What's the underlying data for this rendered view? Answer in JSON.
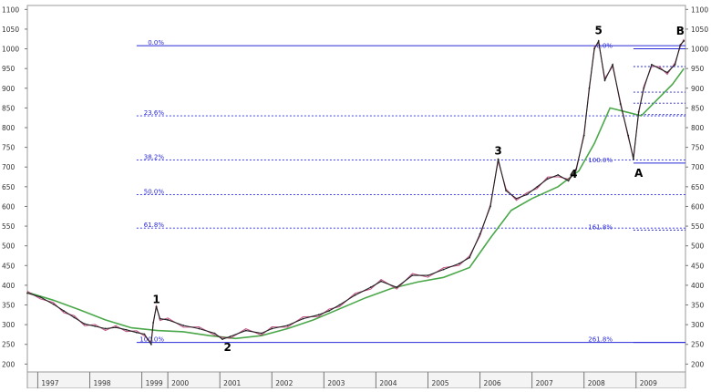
{
  "chart_data": {
    "type": "line",
    "title": "",
    "xlabel": "",
    "ylabel": "",
    "ylim": [
      180,
      1110
    ],
    "xlim": [
      1997.3,
      2009.95
    ],
    "y_ticks": [
      1100,
      1050,
      1000,
      950,
      900,
      850,
      800,
      750,
      700,
      650,
      600,
      550,
      500,
      450,
      400,
      350,
      300,
      250,
      200
    ],
    "y_tick_labels": [
      "1100",
      "1050",
      "1000",
      "950",
      "900",
      "850",
      "800",
      "750",
      "700",
      "650",
      "600",
      "550",
      "500",
      "450",
      "400",
      "350",
      "300",
      "250",
      "200"
    ],
    "x_ticks": [
      {
        "label": "1997",
        "x": 1997.5
      },
      {
        "label": "1998",
        "x": 1998.5
      },
      {
        "label": "1999",
        "x": 1999.5
      },
      {
        "label": "2000",
        "x": 2000.0
      },
      {
        "label": "2001",
        "x": 2001.0
      },
      {
        "label": "2002",
        "x": 2002.0
      },
      {
        "label": "2003",
        "x": 2003.0
      },
      {
        "label": "2004",
        "x": 2004.0
      },
      {
        "label": "2005",
        "x": 2005.0
      },
      {
        "label": "2006",
        "x": 2006.0
      },
      {
        "label": "2007",
        "x": 2007.0
      },
      {
        "label": "2008",
        "x": 2008.0
      },
      {
        "label": "2009",
        "x": 2009.0
      }
    ],
    "colors": {
      "price": "#222222",
      "price_shadow": "#b0306a",
      "moving_average": "#4aa84a",
      "fib_line": "#2a2ad8",
      "fib_text": "#2a2ad8",
      "label": "#000000"
    },
    "series": [
      {
        "key": "price",
        "points": [
          [
            1997.3,
            380
          ],
          [
            1997.55,
            370
          ],
          [
            1997.8,
            352
          ],
          [
            1998.0,
            335
          ],
          [
            1998.2,
            318
          ],
          [
            1998.4,
            302
          ],
          [
            1998.6,
            296
          ],
          [
            1998.8,
            290
          ],
          [
            1999.0,
            293
          ],
          [
            1999.2,
            287
          ],
          [
            1999.4,
            280
          ],
          [
            1999.55,
            276
          ],
          [
            1999.68,
            250
          ],
          [
            1999.72,
            305
          ],
          [
            1999.78,
            345
          ],
          [
            1999.85,
            315
          ],
          [
            2000.0,
            312
          ],
          [
            2000.3,
            298
          ],
          [
            2000.6,
            290
          ],
          [
            2000.9,
            278
          ],
          [
            2001.05,
            263
          ],
          [
            2001.2,
            270
          ],
          [
            2001.5,
            285
          ],
          [
            2001.8,
            278
          ],
          [
            2002.0,
            290
          ],
          [
            2002.3,
            298
          ],
          [
            2002.6,
            315
          ],
          [
            2002.9,
            325
          ],
          [
            2003.1,
            335
          ],
          [
            2003.3,
            350
          ],
          [
            2003.6,
            375
          ],
          [
            2003.9,
            395
          ],
          [
            2004.1,
            410
          ],
          [
            2004.4,
            395
          ],
          [
            2004.7,
            425
          ],
          [
            2005.0,
            425
          ],
          [
            2005.3,
            440
          ],
          [
            2005.6,
            455
          ],
          [
            2005.8,
            470
          ],
          [
            2006.0,
            530
          ],
          [
            2006.2,
            600
          ],
          [
            2006.35,
            720
          ],
          [
            2006.5,
            640
          ],
          [
            2006.7,
            620
          ],
          [
            2006.9,
            630
          ],
          [
            2007.1,
            650
          ],
          [
            2007.3,
            670
          ],
          [
            2007.5,
            680
          ],
          [
            2007.7,
            665
          ],
          [
            2007.85,
            695
          ],
          [
            2008.0,
            780
          ],
          [
            2008.1,
            900
          ],
          [
            2008.2,
            1000
          ],
          [
            2008.28,
            1020
          ],
          [
            2008.4,
            920
          ],
          [
            2008.55,
            960
          ],
          [
            2008.7,
            860
          ],
          [
            2008.85,
            780
          ],
          [
            2008.95,
            720
          ],
          [
            2009.05,
            840
          ],
          [
            2009.15,
            900
          ],
          [
            2009.3,
            960
          ],
          [
            2009.45,
            950
          ],
          [
            2009.6,
            940
          ],
          [
            2009.75,
            960
          ],
          [
            2009.85,
            1010
          ],
          [
            2009.92,
            1020
          ]
        ]
      },
      {
        "key": "moving_average",
        "points": [
          [
            1997.3,
            382
          ],
          [
            1997.8,
            362
          ],
          [
            1998.3,
            338
          ],
          [
            1998.8,
            312
          ],
          [
            1999.3,
            292
          ],
          [
            1999.8,
            285
          ],
          [
            2000.3,
            282
          ],
          [
            2000.8,
            272
          ],
          [
            2001.3,
            265
          ],
          [
            2001.8,
            272
          ],
          [
            2002.3,
            290
          ],
          [
            2002.8,
            312
          ],
          [
            2003.3,
            340
          ],
          [
            2003.8,
            368
          ],
          [
            2004.3,
            392
          ],
          [
            2004.8,
            408
          ],
          [
            2005.3,
            420
          ],
          [
            2005.8,
            445
          ],
          [
            2006.2,
            520
          ],
          [
            2006.6,
            590
          ],
          [
            2007.0,
            620
          ],
          [
            2007.5,
            650
          ],
          [
            2007.9,
            690
          ],
          [
            2008.2,
            760
          ],
          [
            2008.5,
            850
          ],
          [
            2008.8,
            840
          ],
          [
            2009.1,
            830
          ],
          [
            2009.4,
            870
          ],
          [
            2009.7,
            910
          ],
          [
            2009.92,
            950
          ]
        ]
      }
    ],
    "wave_labels": [
      {
        "text": "1",
        "x": 1999.78,
        "y": 355
      },
      {
        "text": "2",
        "x": 2001.15,
        "y": 233
      },
      {
        "text": "3",
        "x": 2006.35,
        "y": 732
      },
      {
        "text": "4",
        "x": 2007.8,
        "y": 673
      },
      {
        "text": "5",
        "x": 2008.28,
        "y": 1037
      },
      {
        "text": "A",
        "x": 2009.05,
        "y": 675
      },
      {
        "text": "B",
        "x": 2009.85,
        "y": 1036
      }
    ],
    "fib_levels": [
      {
        "label": "0.0%",
        "y": 1008,
        "x_start": 1999.4,
        "style": "solid"
      },
      {
        "label": "23.6%",
        "y": 830,
        "x_start": 1999.4,
        "style": "dotted"
      },
      {
        "label": "38.2%",
        "y": 718,
        "x_start": 1999.4,
        "style": "dotted"
      },
      {
        "label": "50.0%",
        "y": 630,
        "x_start": 1999.4,
        "style": "dotted"
      },
      {
        "label": "61.8%",
        "y": 545,
        "x_start": 1999.4,
        "style": "dotted"
      },
      {
        "label": "100.0%",
        "y": 255,
        "x_start": 1999.4,
        "style": "solid"
      }
    ],
    "fib_levels_right": [
      {
        "label": "0.0%",
        "y": 1000,
        "x_start": 2008.95,
        "style": "solid"
      },
      {
        "label": "",
        "y": 955,
        "x_start": 2008.95,
        "style": "dotted"
      },
      {
        "label": "",
        "y": 890,
        "x_start": 2008.95,
        "style": "dotted"
      },
      {
        "label": "",
        "y": 862,
        "x_start": 2008.95,
        "style": "dotted"
      },
      {
        "label": "",
        "y": 833,
        "x_start": 2008.95,
        "style": "dotted"
      },
      {
        "label": "100.0%",
        "y": 710,
        "x_start": 2008.95,
        "style": "solid"
      },
      {
        "label": "161.8%",
        "y": 540,
        "x_start": 2008.95,
        "style": "dotted"
      },
      {
        "label": "261.8%",
        "y": 255,
        "x_start": 2008.95,
        "style": "solid"
      }
    ]
  }
}
